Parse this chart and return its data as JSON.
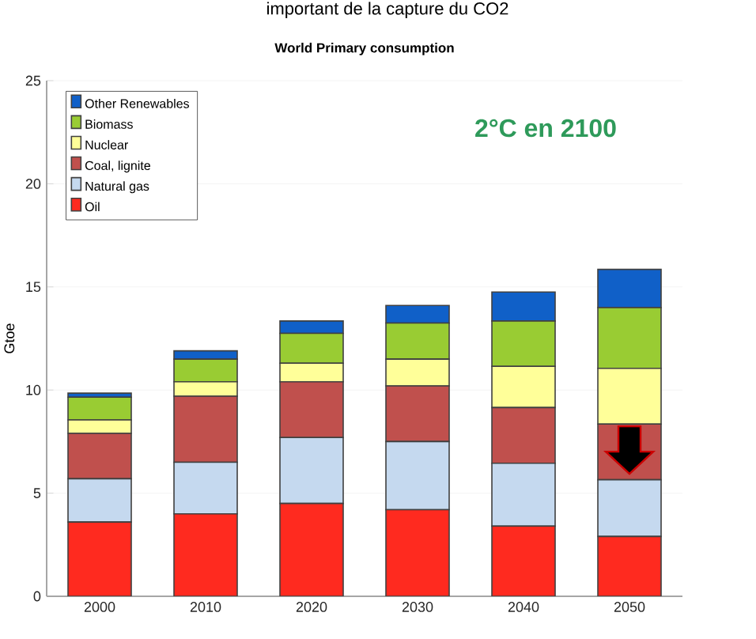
{
  "chart_data": {
    "type": "bar",
    "title": "World Primary consumption",
    "ylabel": "Gtoe",
    "annotations": [
      "important de la capture du CO2",
      "2°C en 2100"
    ],
    "categories": [
      "2000",
      "2010",
      "2020",
      "2030",
      "2040",
      "2050"
    ],
    "stacked": true,
    "series": [
      {
        "name": "Oil",
        "color": "#ff2a1f",
        "values": [
          3.6,
          4.0,
          4.5,
          4.2,
          3.4,
          2.9
        ]
      },
      {
        "name": "Natural gas",
        "color": "#c5d9ef",
        "values": [
          2.1,
          2.5,
          3.2,
          3.3,
          3.05,
          2.75
        ]
      },
      {
        "name": "Coal, lignite",
        "color": "#c0504d",
        "values": [
          2.2,
          3.2,
          2.7,
          2.7,
          2.7,
          2.7
        ]
      },
      {
        "name": "Nuclear",
        "color": "#ffff99",
        "values": [
          0.65,
          0.7,
          0.9,
          1.3,
          2.0,
          2.7
        ]
      },
      {
        "name": "Biomass",
        "color": "#99cc33",
        "values": [
          1.1,
          1.1,
          1.45,
          1.75,
          2.2,
          2.95
        ]
      },
      {
        "name": "Other Renewables",
        "color": "#1060c8",
        "values": [
          0.2,
          0.4,
          0.6,
          0.85,
          1.4,
          1.85
        ]
      }
    ],
    "ylim": [
      0,
      25
    ],
    "yticks": [
      0,
      5,
      10,
      15,
      20,
      25
    ],
    "grid": "y",
    "legend": "top left"
  }
}
